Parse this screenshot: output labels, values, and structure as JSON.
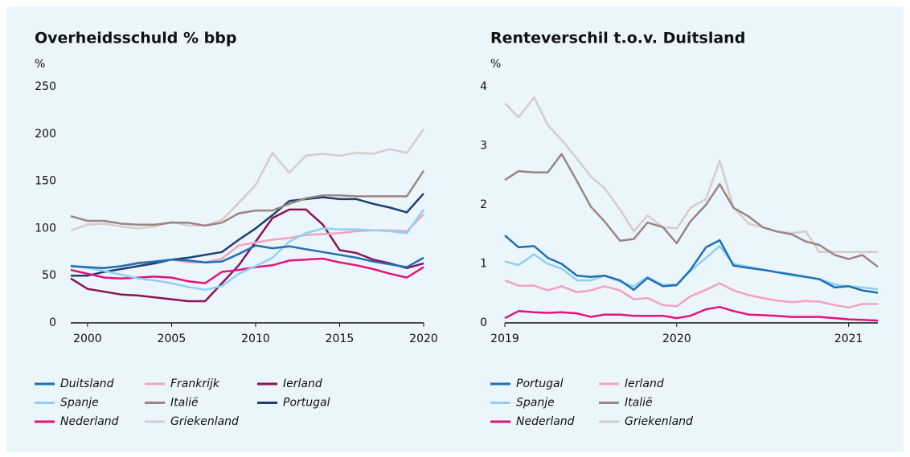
{
  "chart_data": [
    {
      "type": "line",
      "title": "Overheidsschuld % bbp",
      "ylabel": "%",
      "x": [
        1999,
        2000,
        2001,
        2002,
        2003,
        2004,
        2005,
        2006,
        2007,
        2008,
        2009,
        2010,
        2011,
        2012,
        2013,
        2014,
        2015,
        2016,
        2017,
        2018,
        2019,
        2020
      ],
      "xlim": [
        1999,
        2020
      ],
      "xticks": [
        2000,
        2005,
        2010,
        2015,
        2020
      ],
      "ylim": [
        0,
        250
      ],
      "yticks": [
        0,
        50,
        100,
        150,
        200,
        250
      ],
      "series": [
        {
          "name": "Duitsland",
          "color": "#1f6fb5",
          "values": [
            60,
            59,
            58,
            60,
            63,
            65,
            67,
            66,
            64,
            65,
            73,
            82,
            79,
            81,
            78,
            75,
            72,
            69,
            65,
            62,
            59,
            69
          ]
        },
        {
          "name": "Spanje",
          "color": "#8fd0f5",
          "values": [
            61,
            58,
            55,
            51,
            47,
            45,
            42,
            38,
            35,
            39,
            52,
            60,
            69,
            86,
            95,
            100,
            99,
            99,
            98,
            97,
            95,
            120
          ]
        },
        {
          "name": "Nederland",
          "color": "#e5127d",
          "values": [
            56,
            52,
            48,
            47,
            48,
            49,
            48,
            44,
            42,
            54,
            56,
            59,
            61,
            66,
            67,
            68,
            64,
            61,
            57,
            52,
            48,
            59
          ]
        },
        {
          "name": "Frankrijk",
          "color": "#f4a3bd",
          "values": [
            60,
            59,
            58,
            60,
            64,
            65,
            67,
            64,
            64,
            68,
            82,
            85,
            88,
            90,
            93,
            94,
            95,
            97,
            98,
            98,
            97,
            115
          ]
        },
        {
          "name": "Italië",
          "color": "#9c8582",
          "values": [
            113,
            108,
            108,
            105,
            104,
            104,
            106,
            106,
            103,
            106,
            116,
            119,
            119,
            126,
            132,
            135,
            135,
            134,
            134,
            134,
            134,
            161
          ]
        },
        {
          "name": "Griekenland",
          "color": "#d9cbcb",
          "values": [
            98,
            104,
            105,
            102,
            100,
            102,
            107,
            103,
            103,
            109,
            127,
            146,
            180,
            159,
            177,
            179,
            177,
            180,
            179,
            184,
            180,
            205
          ]
        },
        {
          "name": "Ierland",
          "color": "#8a1458",
          "values": [
            47,
            36,
            33,
            30,
            29,
            27,
            25,
            23,
            23,
            42,
            61,
            86,
            111,
            120,
            120,
            104,
            77,
            74,
            67,
            63,
            58,
            63
          ]
        },
        {
          "name": "Portugal",
          "color": "#1f3f6e",
          "values": [
            50,
            50,
            54,
            57,
            60,
            63,
            67,
            69,
            72,
            75,
            88,
            100,
            114,
            129,
            131,
            133,
            131,
            131,
            126,
            122,
            117,
            137
          ]
        }
      ]
    },
    {
      "type": "line",
      "title": "Renteverschil t.o.v. Duitsland",
      "ylabel": "%",
      "x": [
        2019,
        2019.08,
        2019.17,
        2019.25,
        2019.33,
        2019.42,
        2019.5,
        2019.58,
        2019.67,
        2019.75,
        2019.83,
        2019.92,
        2020,
        2020.08,
        2020.17,
        2020.25,
        2020.33,
        2020.42,
        2020.5,
        2020.58,
        2020.67,
        2020.75,
        2020.83,
        2020.92,
        2021,
        2021.08,
        2021.17
      ],
      "xlim": [
        2019,
        2021.17
      ],
      "xticks": [
        2019,
        2020,
        2021
      ],
      "ylim": [
        0,
        4
      ],
      "yticks": [
        0,
        1,
        2,
        3,
        4
      ],
      "series": [
        {
          "name": "Portugal",
          "color": "#1f6fb5",
          "values": [
            1.48,
            1.28,
            1.3,
            1.1,
            1.0,
            0.8,
            0.78,
            0.8,
            0.72,
            0.56,
            0.76,
            0.62,
            0.64,
            0.9,
            1.28,
            1.4,
            0.97,
            0.93,
            0.9,
            0.86,
            0.82,
            0.78,
            0.74,
            0.6,
            0.62,
            0.55,
            0.51
          ]
        },
        {
          "name": "Spanje",
          "color": "#8fd0f5",
          "values": [
            1.04,
            0.98,
            1.16,
            1.0,
            0.92,
            0.72,
            0.72,
            0.8,
            0.7,
            0.62,
            0.78,
            0.64,
            0.65,
            0.88,
            1.1,
            1.3,
            1.0,
            0.95,
            0.9,
            0.86,
            0.8,
            0.78,
            0.74,
            0.65,
            0.62,
            0.6,
            0.57
          ]
        },
        {
          "name": "Nederland",
          "color": "#e5127d",
          "values": [
            0.08,
            0.2,
            0.18,
            0.17,
            0.18,
            0.16,
            0.1,
            0.14,
            0.14,
            0.12,
            0.12,
            0.12,
            0.08,
            0.12,
            0.23,
            0.27,
            0.2,
            0.14,
            0.13,
            0.12,
            0.1,
            0.1,
            0.1,
            0.08,
            0.06,
            0.05,
            0.04
          ]
        },
        {
          "name": "Ierland",
          "color": "#f4a3bd",
          "values": [
            0.72,
            0.63,
            0.63,
            0.55,
            0.62,
            0.52,
            0.55,
            0.62,
            0.55,
            0.4,
            0.42,
            0.3,
            0.28,
            0.45,
            0.56,
            0.67,
            0.55,
            0.47,
            0.42,
            0.38,
            0.35,
            0.37,
            0.36,
            0.3,
            0.26,
            0.32,
            0.32
          ]
        },
        {
          "name": "Italië",
          "color": "#9c8582",
          "values": [
            2.42,
            2.57,
            2.55,
            2.55,
            2.86,
            2.4,
            1.97,
            1.72,
            1.39,
            1.42,
            1.7,
            1.62,
            1.35,
            1.72,
            2.0,
            2.35,
            1.95,
            1.8,
            1.62,
            1.55,
            1.5,
            1.38,
            1.32,
            1.15,
            1.08,
            1.15,
            0.95
          ]
        },
        {
          "name": "Griekenland",
          "color": "#d9cbcb",
          "values": [
            3.72,
            3.48,
            3.82,
            3.35,
            3.1,
            2.78,
            2.48,
            2.28,
            1.92,
            1.55,
            1.82,
            1.62,
            1.6,
            1.95,
            2.1,
            2.75,
            1.95,
            1.68,
            1.62,
            1.55,
            1.52,
            1.55,
            1.2,
            1.2,
            1.2,
            1.2,
            1.2
          ]
        }
      ]
    }
  ]
}
